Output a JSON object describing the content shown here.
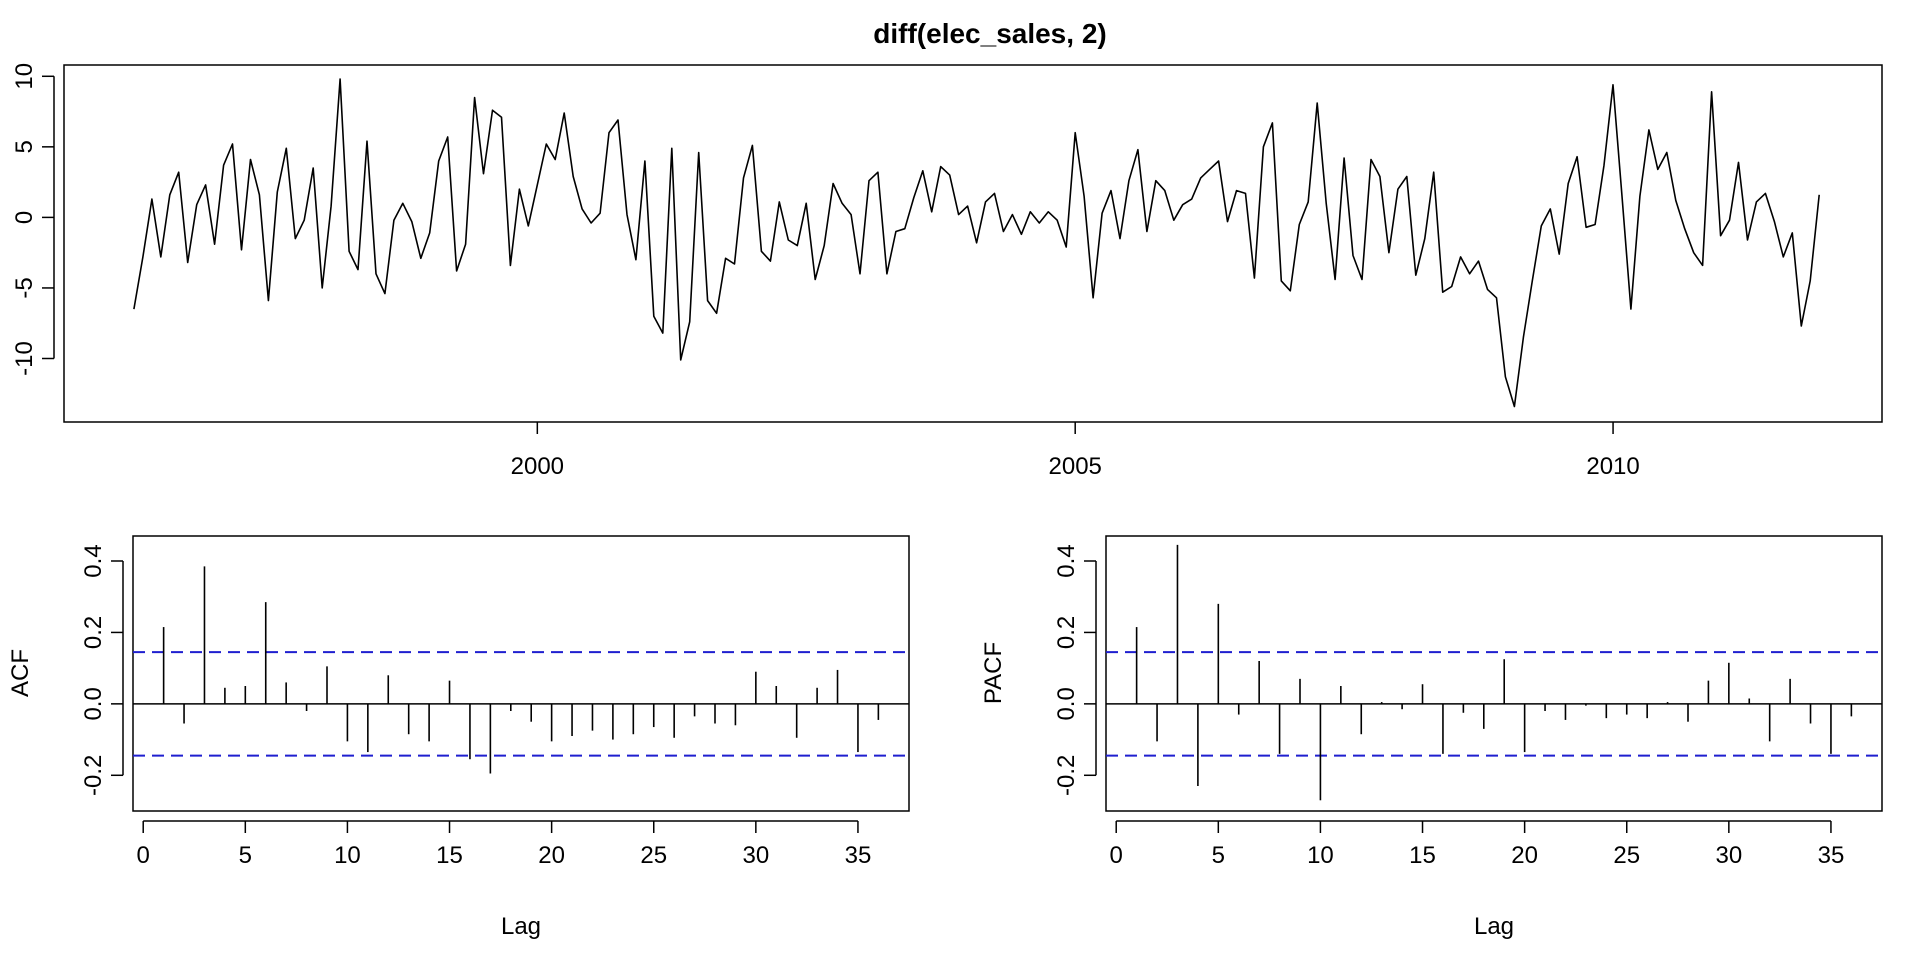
{
  "chart_data": [
    {
      "type": "line",
      "title": "diff(elec_sales, 2)",
      "xlabel": "",
      "ylabel": "",
      "x_start": 1996.25,
      "x_step": 0.08333,
      "xlim": [
        1995.6,
        2012.5
      ],
      "ylim": [
        -14.5,
        10.8
      ],
      "x_ticks": [
        2000,
        2005,
        2010
      ],
      "x_tick_labels": [
        "2000",
        "2005",
        "2010"
      ],
      "y_ticks": [
        -10,
        -5,
        0,
        5,
        10
      ],
      "y_tick_labels": [
        "-10",
        "-5",
        "0",
        "5",
        "10"
      ],
      "line_color": "#000000",
      "values": [
        -6.5,
        -2.8,
        1.3,
        -2.8,
        1.6,
        3.2,
        -3.2,
        0.9,
        2.3,
        -1.9,
        3.7,
        5.2,
        -2.3,
        4.1,
        1.6,
        -5.9,
        1.8,
        4.9,
        -1.5,
        -0.2,
        3.5,
        -5.0,
        0.8,
        9.8,
        -2.4,
        -3.7,
        5.4,
        -4.0,
        -5.4,
        -0.2,
        1.0,
        -0.3,
        -2.9,
        -1.1,
        4.0,
        5.7,
        -3.8,
        -1.9,
        8.5,
        3.1,
        7.6,
        7.1,
        -3.4,
        2.0,
        -0.6,
        2.3,
        5.2,
        4.1,
        7.4,
        2.9,
        0.6,
        -0.4,
        0.3,
        6.0,
        6.9,
        0.2,
        -3.0,
        4.0,
        -7.0,
        -8.2,
        4.9,
        -10.1,
        -7.4,
        4.6,
        -5.9,
        -6.8,
        -2.9,
        -3.3,
        2.8,
        5.1,
        -2.4,
        -3.1,
        1.1,
        -1.6,
        -2.0,
        1.0,
        -4.4,
        -2.0,
        2.4,
        1.0,
        0.2,
        -4.0,
        2.6,
        3.2,
        -4.0,
        -1.0,
        -0.8,
        1.4,
        3.3,
        0.4,
        3.6,
        3.0,
        0.2,
        0.8,
        -1.8,
        1.1,
        1.7,
        -1.0,
        0.2,
        -1.2,
        0.4,
        -0.4,
        0.4,
        -0.2,
        -2.1,
        6.0,
        1.5,
        -5.7,
        0.3,
        1.9,
        -1.5,
        2.6,
        4.8,
        -1.0,
        2.6,
        1.9,
        -0.2,
        0.9,
        1.3,
        2.8,
        3.4,
        4.0,
        -0.3,
        1.9,
        1.7,
        -4.3,
        5.0,
        6.7,
        -4.5,
        -5.2,
        -0.5,
        1.1,
        8.1,
        1.0,
        -4.4,
        4.2,
        -2.7,
        -4.4,
        4.1,
        2.9,
        -2.5,
        2.0,
        2.9,
        -4.1,
        -1.5,
        3.2,
        -5.3,
        -4.9,
        -2.8,
        -4.0,
        -3.1,
        -5.1,
        -5.7,
        -11.3,
        -13.4,
        -8.5,
        -4.5,
        -0.6,
        0.6,
        -2.6,
        2.4,
        4.3,
        -0.7,
        -0.5,
        3.7,
        9.4,
        1.5,
        -6.5,
        1.5,
        6.2,
        3.4,
        4.6,
        1.2,
        -0.8,
        -2.5,
        -3.4,
        8.9,
        -1.3,
        -0.2,
        3.9,
        -1.6,
        1.1,
        1.7,
        -0.3,
        -2.8,
        -1.1,
        -7.7,
        -4.5,
        1.6
      ]
    },
    {
      "type": "bar",
      "title": "",
      "xlabel": "Lag",
      "ylabel": "ACF",
      "xlim": [
        -0.5,
        37.5
      ],
      "ylim": [
        -0.3,
        0.47
      ],
      "x_ticks": [
        0,
        5,
        10,
        15,
        20,
        25,
        30,
        35
      ],
      "x_tick_labels": [
        "0",
        "5",
        "10",
        "15",
        "20",
        "25",
        "30",
        "35"
      ],
      "y_ticks": [
        -0.2,
        0.0,
        0.2,
        0.4
      ],
      "y_tick_labels": [
        "-0.2",
        "0.0",
        "0.2",
        "0.4"
      ],
      "confidence_bound": 0.145,
      "bound_color": "#1f1fcf",
      "lags": [
        1,
        2,
        3,
        4,
        5,
        6,
        7,
        8,
        9,
        10,
        11,
        12,
        13,
        14,
        15,
        16,
        17,
        18,
        19,
        20,
        21,
        22,
        23,
        24,
        25,
        26,
        27,
        28,
        29,
        30,
        31,
        32,
        33,
        34,
        35,
        36
      ],
      "values": [
        0.215,
        -0.055,
        0.385,
        0.045,
        0.05,
        0.285,
        0.06,
        -0.02,
        0.105,
        -0.105,
        -0.135,
        0.08,
        -0.085,
        -0.105,
        0.065,
        -0.155,
        -0.195,
        -0.02,
        -0.05,
        -0.105,
        -0.09,
        -0.075,
        -0.1,
        -0.085,
        -0.065,
        -0.095,
        -0.035,
        -0.055,
        -0.06,
        0.09,
        0.05,
        -0.095,
        0.045,
        0.095,
        -0.135,
        -0.045
      ]
    },
    {
      "type": "bar",
      "title": "",
      "xlabel": "Lag",
      "ylabel": "PACF",
      "xlim": [
        -0.5,
        37.5
      ],
      "ylim": [
        -0.3,
        0.47
      ],
      "x_ticks": [
        0,
        5,
        10,
        15,
        20,
        25,
        30,
        35
      ],
      "x_tick_labels": [
        "0",
        "5",
        "10",
        "15",
        "20",
        "25",
        "30",
        "35"
      ],
      "y_ticks": [
        -0.2,
        0.0,
        0.2,
        0.4
      ],
      "y_tick_labels": [
        "-0.2",
        "0.0",
        "0.2",
        "0.4"
      ],
      "confidence_bound": 0.145,
      "bound_color": "#1f1fcf",
      "lags": [
        1,
        2,
        3,
        4,
        5,
        6,
        7,
        8,
        9,
        10,
        11,
        12,
        13,
        14,
        15,
        16,
        17,
        18,
        19,
        20,
        21,
        22,
        23,
        24,
        25,
        26,
        27,
        28,
        29,
        30,
        31,
        32,
        33,
        34,
        35,
        36
      ],
      "values": [
        0.215,
        -0.105,
        0.445,
        -0.23,
        0.28,
        -0.03,
        0.12,
        -0.14,
        0.07,
        -0.27,
        0.05,
        -0.085,
        0.005,
        -0.015,
        0.055,
        -0.14,
        -0.025,
        -0.07,
        0.125,
        -0.135,
        -0.02,
        -0.045,
        -0.005,
        -0.04,
        -0.03,
        -0.04,
        0.005,
        -0.05,
        0.065,
        0.115,
        0.015,
        -0.105,
        0.07,
        -0.055,
        -0.14,
        -0.035
      ]
    }
  ]
}
